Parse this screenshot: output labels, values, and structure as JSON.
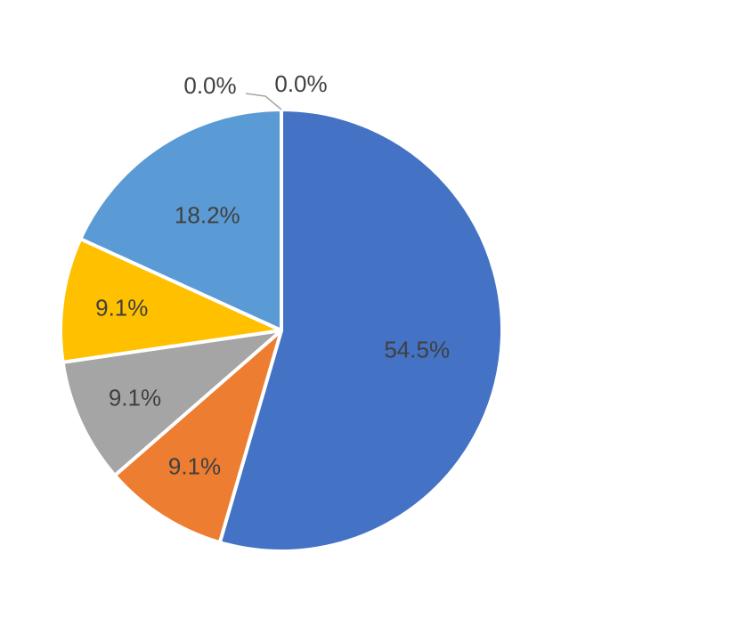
{
  "chart_data": {
    "type": "pie",
    "slices": [
      {
        "value": 54.5,
        "label": "54.5%",
        "color": "#4472C4"
      },
      {
        "value": 9.1,
        "label": "9.1%",
        "color": "#ED7D31"
      },
      {
        "value": 9.1,
        "label": "9.1%",
        "color": "#A5A5A5"
      },
      {
        "value": 9.1,
        "label": "9.1%",
        "color": "#FFC000"
      },
      {
        "value": 18.2,
        "label": "18.2%",
        "color": "#5B9BD5"
      },
      {
        "value": 0.0,
        "label": "0.0%",
        "color": "#70AD47"
      },
      {
        "value": 0.0,
        "label": "0.0%",
        "color": "#264478"
      }
    ],
    "start_angle_deg": 0,
    "direction": "clockwise",
    "legend": "none",
    "data_labels": "percent",
    "label_color": "#404040",
    "slice_border_color": "#FFFFFF"
  }
}
